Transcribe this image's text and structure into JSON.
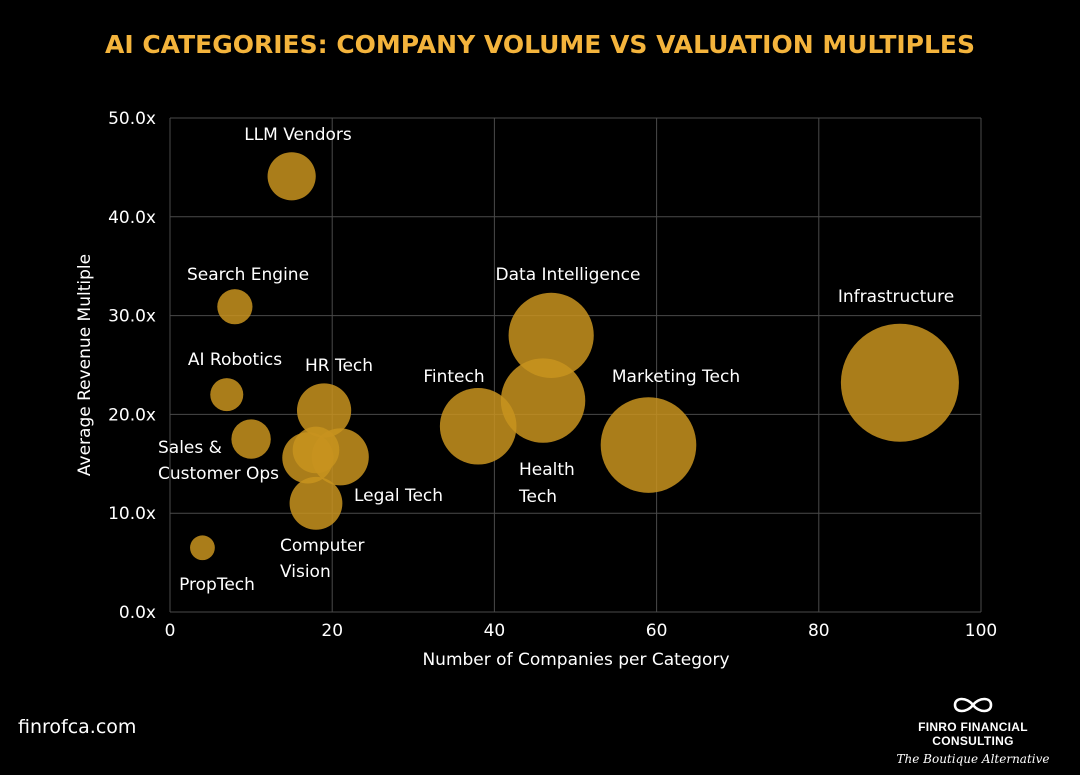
{
  "chart_data": {
    "type": "scatter",
    "title": "AI CATEGORIES: COMPANY VOLUME VS VALUATION MULTIPLES",
    "xlabel": "Number of Companies per Category",
    "ylabel": "Average Revenue Multiple",
    "xlim": [
      0,
      100
    ],
    "ylim": [
      0,
      50
    ],
    "x_ticks": [
      {
        "value": 0,
        "label": "0"
      },
      {
        "value": 20,
        "label": "20"
      },
      {
        "value": 40,
        "label": "40"
      },
      {
        "value": 60,
        "label": "60"
      },
      {
        "value": 80,
        "label": "80"
      },
      {
        "value": 100,
        "label": "100"
      }
    ],
    "y_ticks": [
      {
        "value": 0,
        "label": "0.0x"
      },
      {
        "value": 10,
        "label": "10.0x"
      },
      {
        "value": 20,
        "label": "20.0x"
      },
      {
        "value": 30,
        "label": "30.0x"
      },
      {
        "value": 40,
        "label": "40.0x"
      },
      {
        "value": 50,
        "label": "50.0x"
      }
    ],
    "grid": true,
    "bubble_color": "#C8931F",
    "points": [
      {
        "name": "LLM Vendors",
        "x": 15,
        "y": 44.1,
        "size": 15
      },
      {
        "name": "Search Engine",
        "x": 8,
        "y": 30.9,
        "size": 8
      },
      {
        "name": "AI Robotics",
        "x": 7,
        "y": 22.0,
        "size": 7
      },
      {
        "name": "Sales & Customer Ops",
        "x": 10,
        "y": 17.5,
        "size": 10
      },
      {
        "name": "HR Tech",
        "x": 19,
        "y": 20.4,
        "size": 19
      },
      {
        "name": "Legal Tech",
        "x": 21,
        "y": 15.7,
        "size": 21
      },
      {
        "name": "Computer Vision",
        "x": 18,
        "y": 11.0,
        "size": 18
      },
      {
        "name": "PropTech",
        "x": 4,
        "y": 6.5,
        "size": 4
      },
      {
        "name": "Fintech",
        "x": 38,
        "y": 18.8,
        "size": 38
      },
      {
        "name": "Data Intelligence",
        "x": 47,
        "y": 28.0,
        "size": 47
      },
      {
        "name": "Health Tech",
        "x": 46,
        "y": 21.4,
        "size": 46
      },
      {
        "name": "Marketing Tech",
        "x": 59,
        "y": 16.9,
        "size": 59
      },
      {
        "name": "Infrastructure",
        "x": 90,
        "y": 23.2,
        "size": 90
      },
      {
        "name": "",
        "x": 17,
        "y": 15.6,
        "size": 17
      },
      {
        "name": "",
        "x": 18,
        "y": 16.4,
        "size": 14
      }
    ]
  },
  "labels": {
    "llm": "LLM Vendors",
    "search": "Search Engine",
    "robotics": "AI Robotics",
    "sales_1": "Sales &",
    "sales_2": "Customer Ops",
    "hr": "HR Tech",
    "legal": "Legal Tech",
    "cv_1": "Computer",
    "cv_2": "Vision",
    "proptech": "PropTech",
    "fintech": "Fintech",
    "data": "Data Intelligence",
    "health_1": "Health",
    "health_2": "Tech",
    "marketing": "Marketing Tech",
    "infra": "Infrastructure"
  },
  "footer": {
    "website": "finrofca.com",
    "brand_name": "FINRO FINANCIAL CONSULTING",
    "tagline": "The Boutique Alternative",
    "logo_icon": "infinity-icon"
  }
}
